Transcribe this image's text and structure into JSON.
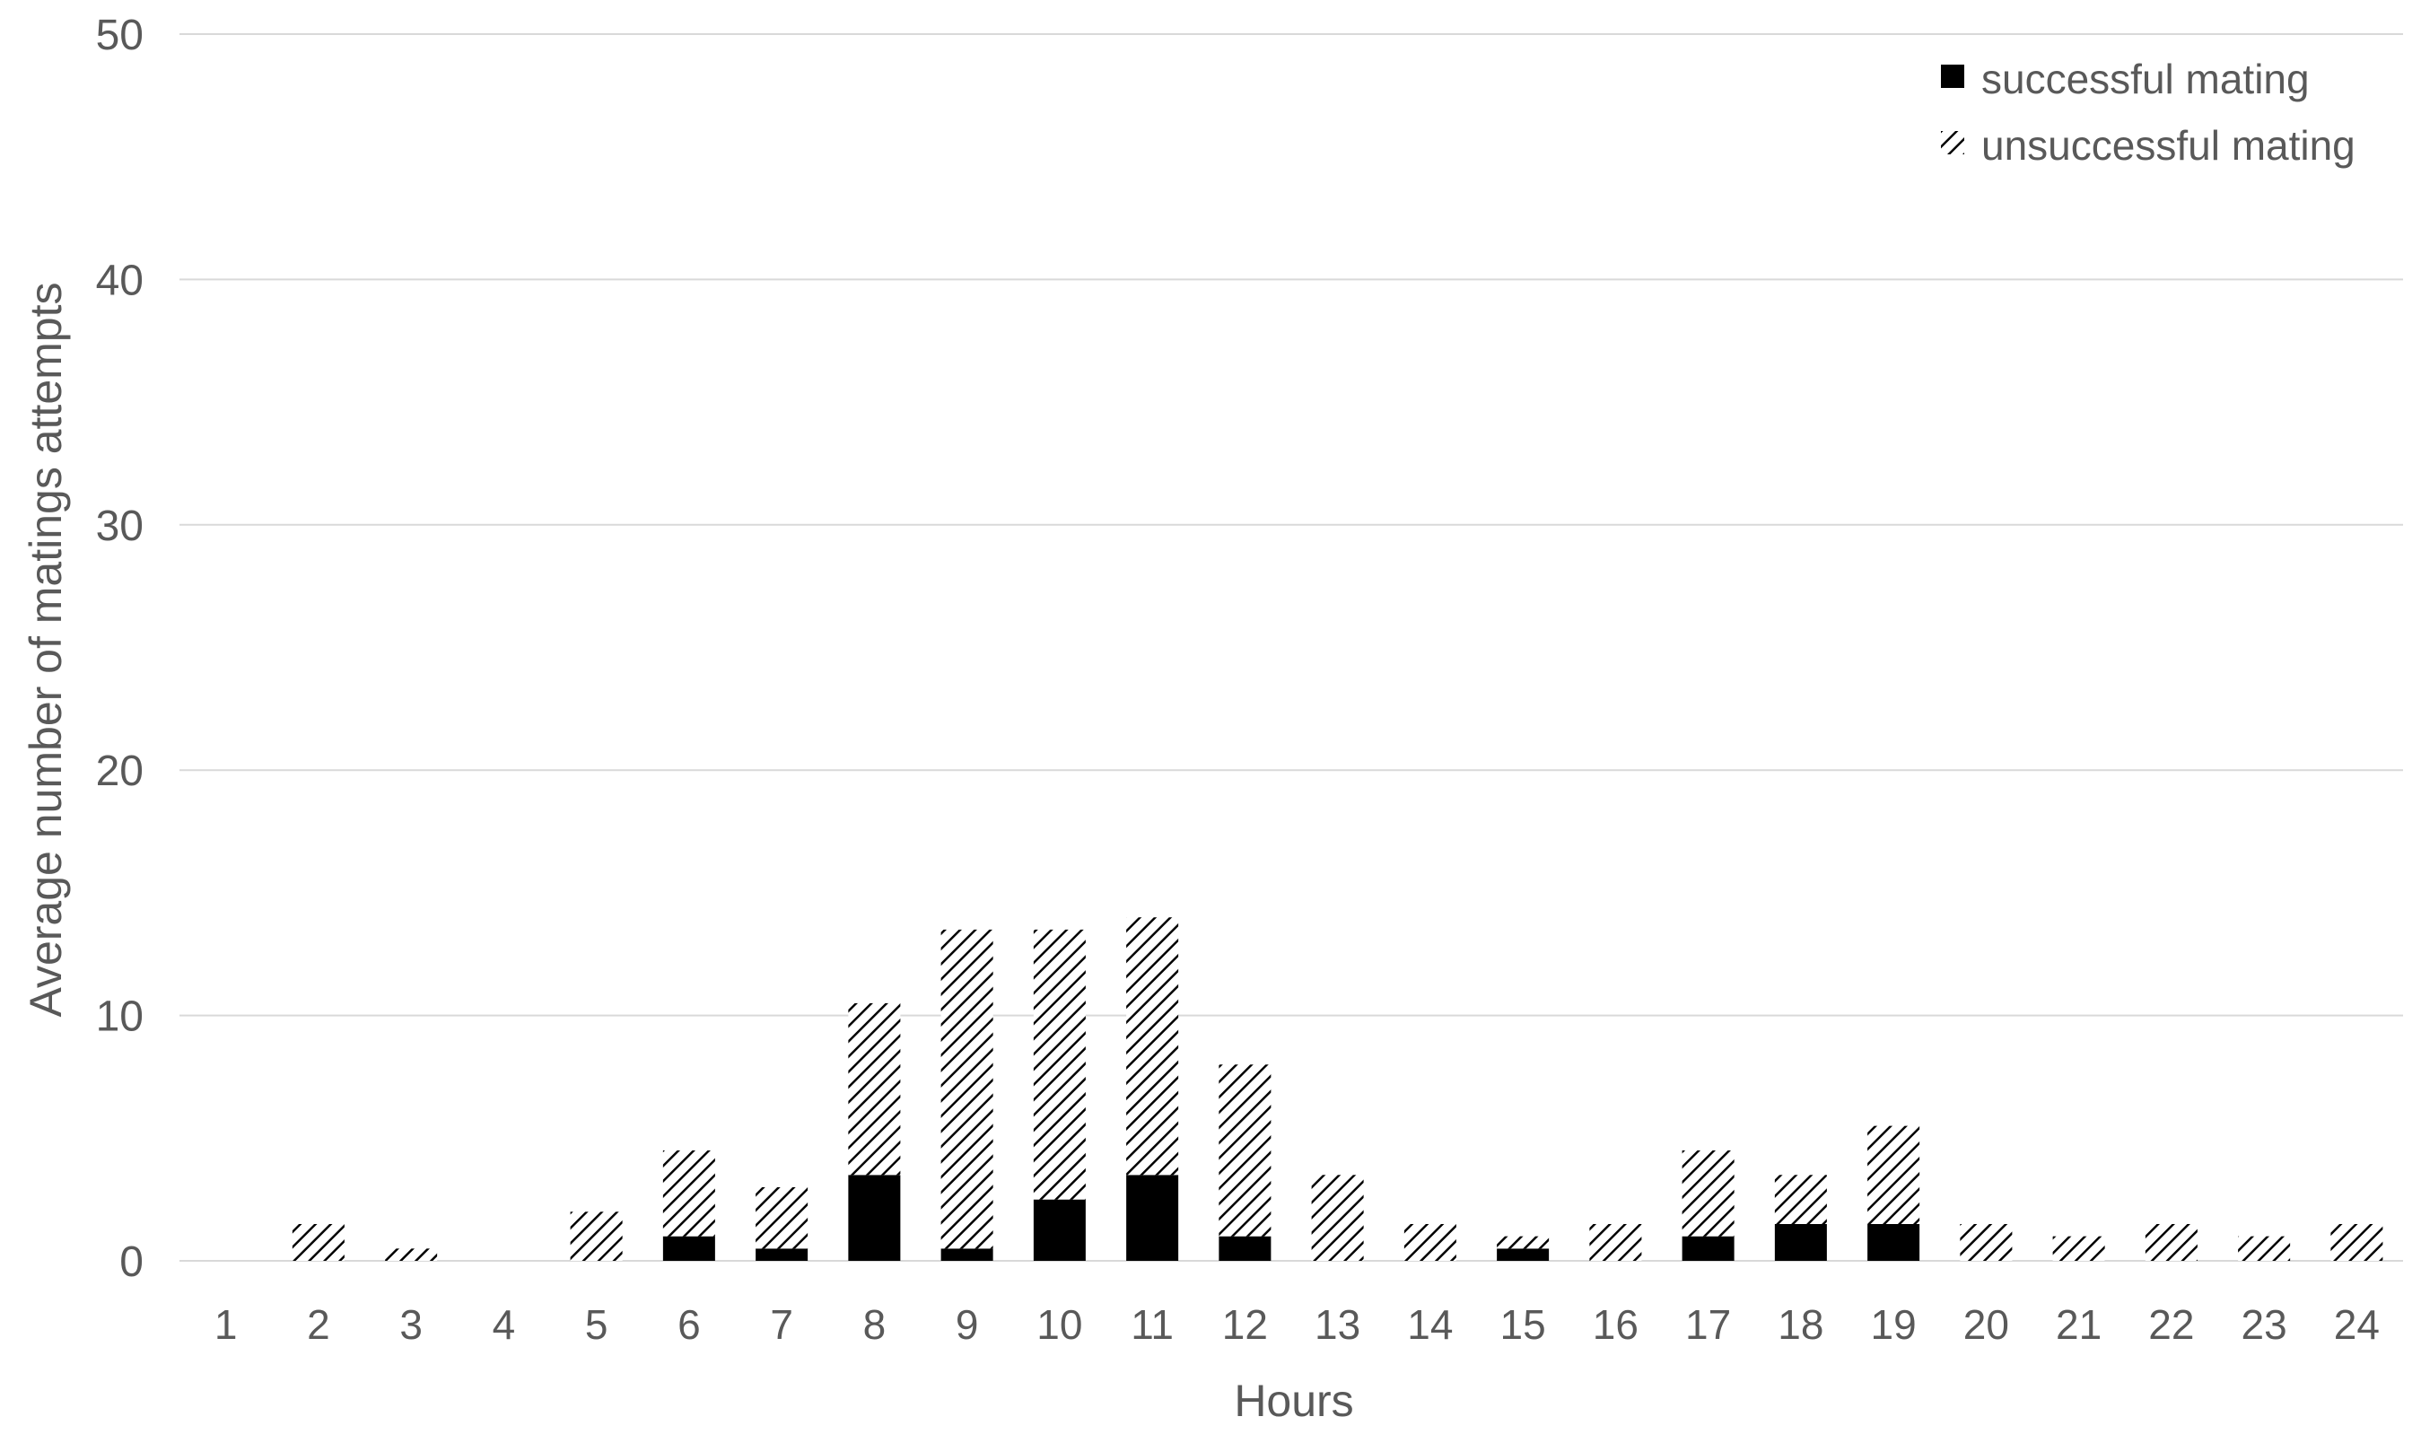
{
  "chart_data": {
    "type": "bar",
    "stacked": true,
    "title": "",
    "xlabel": "Hours",
    "ylabel": "Average number of matings attempts",
    "ylim": [
      0,
      50
    ],
    "yticks": [
      "0",
      "10",
      "20",
      "30",
      "40",
      "50"
    ],
    "grid": true,
    "legend_position": "top-right",
    "categories": [
      "1",
      "2",
      "3",
      "4",
      "5",
      "6",
      "7",
      "8",
      "9",
      "10",
      "11",
      "12",
      "13",
      "14",
      "15",
      "16",
      "17",
      "18",
      "19",
      "20",
      "21",
      "22",
      "23",
      "24"
    ],
    "series": [
      {
        "name": "successful mating",
        "pattern": "solid",
        "color": "#000000",
        "values": [
          0,
          0,
          0,
          0,
          0,
          1,
          0.5,
          3.5,
          0.5,
          2.5,
          3.5,
          1,
          0,
          0,
          0.5,
          0,
          1,
          1.5,
          1.5,
          0,
          0,
          0,
          0,
          0
        ]
      },
      {
        "name": "unsuccessful mating",
        "pattern": "diagonal-hatch",
        "color": "#000000",
        "values": [
          0,
          1.5,
          0.5,
          0,
          2,
          3.5,
          2.5,
          7,
          13,
          11,
          10.5,
          7,
          3.5,
          1.5,
          0.5,
          1.5,
          3.5,
          2,
          4,
          1.5,
          1,
          1.5,
          1,
          1.5
        ]
      }
    ],
    "colors": {
      "axis_text": "#595959",
      "gridline": "#d9d9d9"
    }
  }
}
